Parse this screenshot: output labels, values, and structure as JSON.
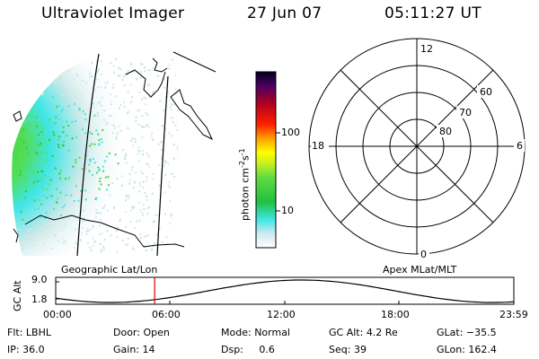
{
  "header": {
    "title": "Ultraviolet Imager",
    "date": "27 Jun 07",
    "time": "05:11:27 UT"
  },
  "colorbar": {
    "label_main": "photon cm",
    "label_sup1": "-2",
    "label_mid": "s",
    "label_sup2": "-1",
    "tick_100": "100",
    "tick_10": "10"
  },
  "polar_plot": {
    "mlt_12": "12",
    "mlt_18": "18",
    "mlt_6": "6",
    "mlt_0": "0",
    "lat_60": "60",
    "lat_70": "70",
    "lat_80": "80"
  },
  "altitude_plot": {
    "left_caption": "Geographic Lat/Lon",
    "right_caption": "Apex MLat/MLT",
    "axis_label": "GC Alt",
    "y_top": "9.0",
    "y_bottom": "1.8",
    "x_ticks": [
      "00:00",
      "06:00",
      "12:00",
      "18:00",
      "23:59"
    ],
    "current_time_marker_fraction": 0.216
  },
  "status": {
    "flt_label": "Flt:",
    "flt_value": "LBHL",
    "door_label": "Door:",
    "door_value": "Open",
    "mode_label": "Mode:",
    "mode_value": "Normal",
    "gcalt_label": "GC Alt:",
    "gcalt_value": "4.2 Re",
    "glat_label": "GLat:",
    "glat_value": "−35.5",
    "ip_label": "IP:",
    "ip_value": "36.0",
    "gain_label": "Gain:",
    "gain_value": "14",
    "dsp_label": "Dsp:",
    "dsp_value": "0.6",
    "seq_label": "Seq:",
    "seq_value": "39",
    "glon_label": "GLon:",
    "glon_value": "162.4"
  },
  "colors": {
    "aurora_green": "#3fd23f",
    "aurora_cyan": "#3fe6e6",
    "faint": "#d9e6e6",
    "marker": "#e00000"
  }
}
